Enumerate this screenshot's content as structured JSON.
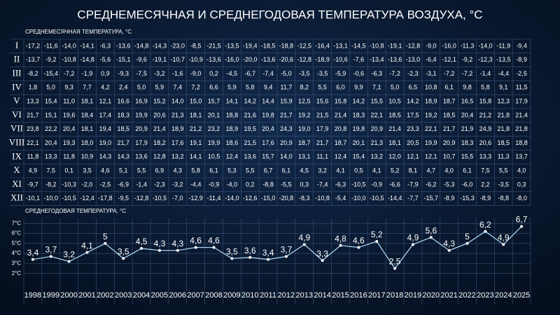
{
  "title": "СРЕДНЕМЕСЯЧНАЯ И СРЕДНЕГОДОВАЯ ТЕМПЕРАТУРА ВОЗДУХА, °C",
  "table": {
    "title": "СРЕДНЕМЕСЯЧНАЯ ТЕМПЕРАТУРА, °C",
    "rows": [
      {
        "label": "I",
        "cells": [
          "-17,2",
          "-11,6",
          "-14,0",
          "-14,1",
          "-6,3",
          "-13,6",
          "-14,8",
          "-14,3",
          "-23,0",
          "-8,5",
          "-21,5",
          "-13,5",
          "-19,4",
          "-18,5",
          "-18,8",
          "-12,5",
          "-16,4",
          "-13,1",
          "-14,5",
          "-10,8",
          "-19,1",
          "-12,8",
          "-9,0",
          "-16,0",
          "-11,3",
          "-14,0",
          "-11,9",
          "-9,4"
        ]
      },
      {
        "label": "II",
        "cells": [
          "-13,7",
          "-9,2",
          "-10,8",
          "-14,8",
          "-5,6",
          "-15,1",
          "-9,6",
          "-19,1",
          "-10,7",
          "-10,9",
          "-13,6",
          "-16,0",
          "-20,0",
          "-13,6",
          "-20,6",
          "-12,8",
          "-18,9",
          "-10,6",
          "-7,6",
          "-13,4",
          "-13,6",
          "-13,0",
          "-6,4",
          "-12,1",
          "-9,2",
          "-12,3",
          "-13,5",
          "-8,9"
        ]
      },
      {
        "label": "III",
        "cells": [
          "-8,2",
          "-15,4",
          "-7,2",
          "-1,9",
          "0,9",
          "-9,3",
          "-7,5",
          "-3,2",
          "-1,6",
          "-9,0",
          "0,2",
          "-4,5",
          "-6,7",
          "-7,4",
          "-5,0",
          "-3,5",
          "-3,5",
          "-5,9",
          "-0,6",
          "-6,3",
          "-7,2",
          "-2,3",
          "-3,1",
          "-7,2",
          "-7,2",
          "-1,4",
          "-4,4",
          "-2,5"
        ]
      },
      {
        "label": "IV",
        "cells": [
          "1,8",
          "5,0",
          "9,3",
          "7,7",
          "4,2",
          "2,4",
          "5,0",
          "5,9",
          "7,4",
          "7,2",
          "6,6",
          "5,9",
          "5,8",
          "9,4",
          "11,7",
          "8,2",
          "5,5",
          "6,0",
          "9,9",
          "7,1",
          "5,0",
          "6,5",
          "10,8",
          "6,1",
          "9,8",
          "5,8",
          "9,1",
          "11,5"
        ]
      },
      {
        "label": "V",
        "cells": [
          "13,3",
          "15,4",
          "11,0",
          "18,1",
          "12,1",
          "16,6",
          "16,9",
          "15,2",
          "14,0",
          "15,0",
          "15,7",
          "14,1",
          "14,2",
          "14,4",
          "15,9",
          "12,5",
          "15,6",
          "15,8",
          "14,2",
          "15,5",
          "10,5",
          "14,2",
          "18,9",
          "18,7",
          "16,5",
          "15,8",
          "12,3",
          "17,9"
        ]
      },
      {
        "label": "VI",
        "cells": [
          "21,7",
          "15,1",
          "19,6",
          "18,4",
          "17,4",
          "18,3",
          "19,9",
          "20,6",
          "21,3",
          "18,1",
          "20,1",
          "18,8",
          "21,6",
          "19,8",
          "21,7",
          "19,2",
          "21,5",
          "21,4",
          "18,3",
          "22,1",
          "18,5",
          "17,5",
          "19,2",
          "18,5",
          "20,4",
          "21,2",
          "21,8",
          "21,4"
        ]
      },
      {
        "label": "VII",
        "cells": [
          "23,8",
          "22,2",
          "20,4",
          "18,1",
          "19,4",
          "18,5",
          "20,9",
          "21,4",
          "18,9",
          "21,2",
          "23,2",
          "18,9",
          "19,5",
          "20,4",
          "24,3",
          "19,0",
          "17,9",
          "20,8",
          "19,8",
          "20,9",
          "21,4",
          "23,3",
          "22,1",
          "21,7",
          "21,9",
          "24,9",
          "21,8",
          "21,8"
        ]
      },
      {
        "label": "VIII",
        "cells": [
          "22,1",
          "20,4",
          "19,3",
          "18,0",
          "19,0",
          "21,7",
          "17,9",
          "18,2",
          "17,6",
          "19,1",
          "19,9",
          "18,6",
          "21,5",
          "17,6",
          "20,9",
          "18,7",
          "21,7",
          "18,7",
          "20,1",
          "21,3",
          "18,1",
          "20,5",
          "19,9",
          "20,9",
          "18,3",
          "20,6",
          "18,5",
          "18,8"
        ]
      },
      {
        "label": "IX",
        "cells": [
          "11,8",
          "13,3",
          "11,8",
          "10,9",
          "14,3",
          "14,3",
          "13,6",
          "12,8",
          "13,2",
          "14,1",
          "10,5",
          "12,4",
          "13,6",
          "15,7",
          "14,0",
          "13,1",
          "11,1",
          "12,4",
          "15,4",
          "13,2",
          "12,0",
          "12,1",
          "12,1",
          "10,7",
          "15,5",
          "13,3",
          "11,3",
          "13,7"
        ]
      },
      {
        "label": "X",
        "cells": [
          "4,9",
          "7,5",
          "0,1",
          "3,5",
          "4,6",
          "5,1",
          "5,5",
          "6,9",
          "4,3",
          "5,8",
          "6,1",
          "5,3",
          "5,5",
          "6,7",
          "6,1",
          "4,5",
          "3,2",
          "4,1",
          "0,5",
          "4,1",
          "5,2",
          "8,1",
          "4,7",
          "4,0",
          "6,1",
          "7,5",
          "5,5",
          "4,0"
        ]
      },
      {
        "label": "XI",
        "cells": [
          "-9,7",
          "-8,2",
          "-10,3",
          "-2,0",
          "-2,5",
          "-6,9",
          "-1,4",
          "-2,3",
          "-3,2",
          "-4,4",
          "-0,9",
          "-4,0",
          "0,2",
          "-8,8",
          "-5,5",
          "0,3",
          "-7,4",
          "-6,3",
          "-10,5",
          "-0,9",
          "-6,6",
          "-7,9",
          "-6,2",
          "-5,3",
          "-6,0",
          "2,2",
          "-3,5",
          "0,3"
        ]
      },
      {
        "label": "XII",
        "cells": [
          "-10,1",
          "-10,0",
          "-10,5",
          "-12,4",
          "-17,8",
          "-9,5",
          "-12,8",
          "-10,5",
          "-7,0",
          "-12,9",
          "-11,4",
          "-14,0",
          "-12,6",
          "-15,0",
          "-20,8",
          "-8,3",
          "-10,8",
          "-5,4",
          "-10,0",
          "-10,5",
          "-14,4",
          "-7,7",
          "-15,7",
          "-8,9",
          "-15,3",
          "-8,9",
          "-8,8",
          "-8,0"
        ]
      }
    ]
  },
  "chart_data": {
    "type": "line",
    "title": "СРЕДНЕГОДОВАЯ ТЕМПЕРАТУРА, °C",
    "categories": [
      "1998",
      "1999",
      "2000",
      "2001",
      "2002",
      "2003",
      "2004",
      "2005",
      "2006",
      "2007",
      "2008",
      "2009",
      "2010",
      "2011",
      "2012",
      "2013",
      "2014",
      "2015",
      "2016",
      "2017",
      "2018",
      "2019",
      "2020",
      "2021",
      "2022",
      "2023",
      "2024",
      "2025"
    ],
    "values": [
      3.4,
      3.7,
      3.2,
      4.1,
      5,
      3.5,
      4.5,
      4.3,
      4.3,
      4.6,
      4.6,
      3.5,
      3.6,
      3.4,
      3.7,
      4.9,
      3.3,
      4.8,
      4.6,
      5.2,
      2.5,
      4.9,
      5.6,
      4.3,
      5,
      6.2,
      4.9,
      6.7
    ],
    "value_labels": [
      "3,4",
      "3,7",
      "3,2",
      "4,1",
      "5",
      "3,5",
      "4,5",
      "4,3",
      "4,3",
      "4,6",
      "4,6",
      "3,5",
      "3,6",
      "3,4",
      "3,7",
      "4,9",
      "3,3",
      "4,8",
      "4,6",
      "5,2",
      "2,5",
      "4,9",
      "5,6",
      "4,3",
      "5",
      "6,2",
      "4,9",
      "6,7"
    ],
    "color": "#a9d3f2",
    "ylim": [
      1,
      7.5
    ],
    "yticks": [
      {
        "value": 2,
        "label": "2°C"
      },
      {
        "value": 3,
        "label": "3°C"
      },
      {
        "value": 4,
        "label": "4°C"
      },
      {
        "value": 5,
        "label": "5°C"
      },
      {
        "value": 6,
        "label": "6°C"
      },
      {
        "value": 7,
        "label": "7°C"
      }
    ],
    "grid": true
  }
}
